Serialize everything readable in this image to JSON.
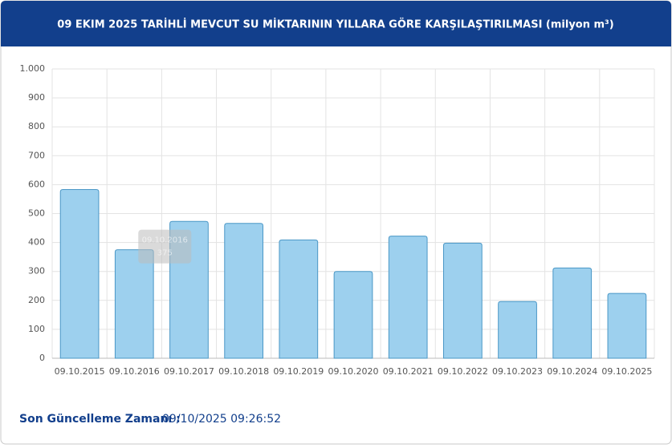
{
  "chart_data": {
    "type": "bar",
    "title": "09 EKIM 2025 TARİHLİ MEVCUT SU MİKTARININ YILLARA GÖRE KARŞILAŞTIRILMASI (milyon m³)",
    "categories": [
      "09.10.2015",
      "09.10.2016",
      "09.10.2017",
      "09.10.2018",
      "09.10.2019",
      "09.10.2020",
      "09.10.2021",
      "09.10.2022",
      "09.10.2023",
      "09.10.2024",
      "09.10.2025"
    ],
    "values": [
      583,
      375,
      473,
      466,
      409,
      300,
      422,
      398,
      196,
      312,
      224
    ],
    "color": "#9dd0ee",
    "ylim": [
      0,
      1000
    ],
    "yticks": [
      0,
      100,
      200,
      300,
      400,
      500,
      600,
      700,
      800,
      900,
      {
        "value": 1000,
        "label": "1.000"
      }
    ],
    "grid": true,
    "footer_label": "Son Güncelleme Zamanı :",
    "footer_value": "09/10/2025 09:26:52"
  }
}
